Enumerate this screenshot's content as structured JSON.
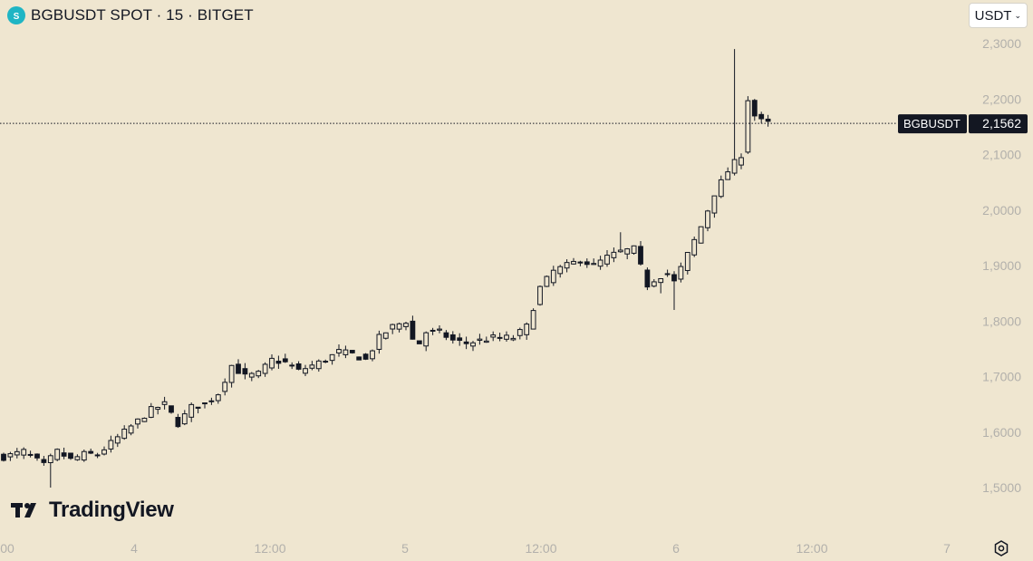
{
  "header": {
    "title": "BGBUSDT SPOT · 15 · BITGET",
    "currency": "USDT"
  },
  "brand": {
    "logo_text": "TradingView"
  },
  "price_label": {
    "symbol": "BGBUSDT",
    "price": "2,1562"
  },
  "colors": {
    "background": "#efe6d0",
    "candle_up": "#efe6d0",
    "candle_down": "#131722",
    "wick": "#131722",
    "axis_text": "#b2b0ab",
    "label_bg": "#131722",
    "label_text": "#ffffff",
    "symbol_icon": "#1fb5c4"
  },
  "icons": {
    "symbol": "coin-icon",
    "settings": "gear-icon",
    "dropdown": "chevron-down-icon"
  },
  "chart_data": {
    "type": "candlestick",
    "title": "BGBUSDT SPOT · 15 · BITGET",
    "ylim": [
      1.47,
      2.33
    ],
    "y_ticks": [
      1.5,
      1.6,
      1.7,
      1.8,
      1.9,
      2.0,
      2.1,
      2.2,
      2.3
    ],
    "y_tick_labels": [
      "1,5000",
      "1,6000",
      "1,7000",
      "1,8000",
      "1,9000",
      "2,0000",
      "2,1000",
      "2,2000",
      "2,3000"
    ],
    "x_ticks": [
      "00",
      "4",
      "12:00",
      "5",
      "12:00",
      "6",
      "12:00",
      "7"
    ],
    "current_price": 2.1562,
    "close_path": [
      [
        0,
        1.555
      ],
      [
        3,
        1.565
      ],
      [
        6,
        1.54
      ],
      [
        8,
        1.565
      ],
      [
        10,
        1.55
      ],
      [
        12,
        1.56
      ],
      [
        14,
        1.56
      ],
      [
        16,
        1.58
      ],
      [
        18,
        1.6
      ],
      [
        20,
        1.62
      ],
      [
        22,
        1.64
      ],
      [
        24,
        1.65
      ],
      [
        26,
        1.615
      ],
      [
        28,
        1.645
      ],
      [
        30,
        1.65
      ],
      [
        32,
        1.67
      ],
      [
        34,
        1.72
      ],
      [
        36,
        1.7
      ],
      [
        38,
        1.705
      ],
      [
        40,
        1.73
      ],
      [
        42,
        1.725
      ],
      [
        44,
        1.71
      ],
      [
        46,
        1.72
      ],
      [
        48,
        1.73
      ],
      [
        50,
        1.745
      ],
      [
        52,
        1.74
      ],
      [
        54,
        1.73
      ],
      [
        56,
        1.77
      ],
      [
        58,
        1.79
      ],
      [
        60,
        1.8
      ],
      [
        61.5,
        1.75
      ],
      [
        63,
        1.78
      ],
      [
        65,
        1.78
      ],
      [
        67,
        1.765
      ],
      [
        69,
        1.76
      ],
      [
        71,
        1.765
      ],
      [
        73,
        1.77
      ],
      [
        76,
        1.77
      ],
      [
        78,
        1.79
      ],
      [
        80,
        1.86
      ],
      [
        82,
        1.89
      ],
      [
        84,
        1.9
      ],
      [
        86,
        1.91
      ],
      [
        88,
        1.9
      ],
      [
        90,
        1.915
      ],
      [
        92,
        1.925
      ],
      [
        94,
        1.93
      ],
      [
        96,
        1.865
      ],
      [
        97.5,
        1.88
      ],
      [
        99,
        1.885
      ],
      [
        100,
        1.87
      ],
      [
        102,
        1.92
      ],
      [
        104,
        1.97
      ],
      [
        106,
        2.03
      ],
      [
        108,
        2.07
      ],
      [
        110,
        2.1
      ],
      [
        111,
        2.2
      ],
      [
        112,
        2.17
      ],
      [
        113,
        2.16
      ],
      [
        114,
        2.156
      ]
    ],
    "extremes": [
      {
        "i": 7,
        "low": 1.5
      },
      {
        "i": 100,
        "low": 1.82
      },
      {
        "i": 109,
        "high": 2.29
      },
      {
        "i": 98,
        "low": 1.85
      },
      {
        "i": 92,
        "high": 1.96
      }
    ],
    "candle_count": 115,
    "x_domain": [
      0,
      140
    ]
  }
}
